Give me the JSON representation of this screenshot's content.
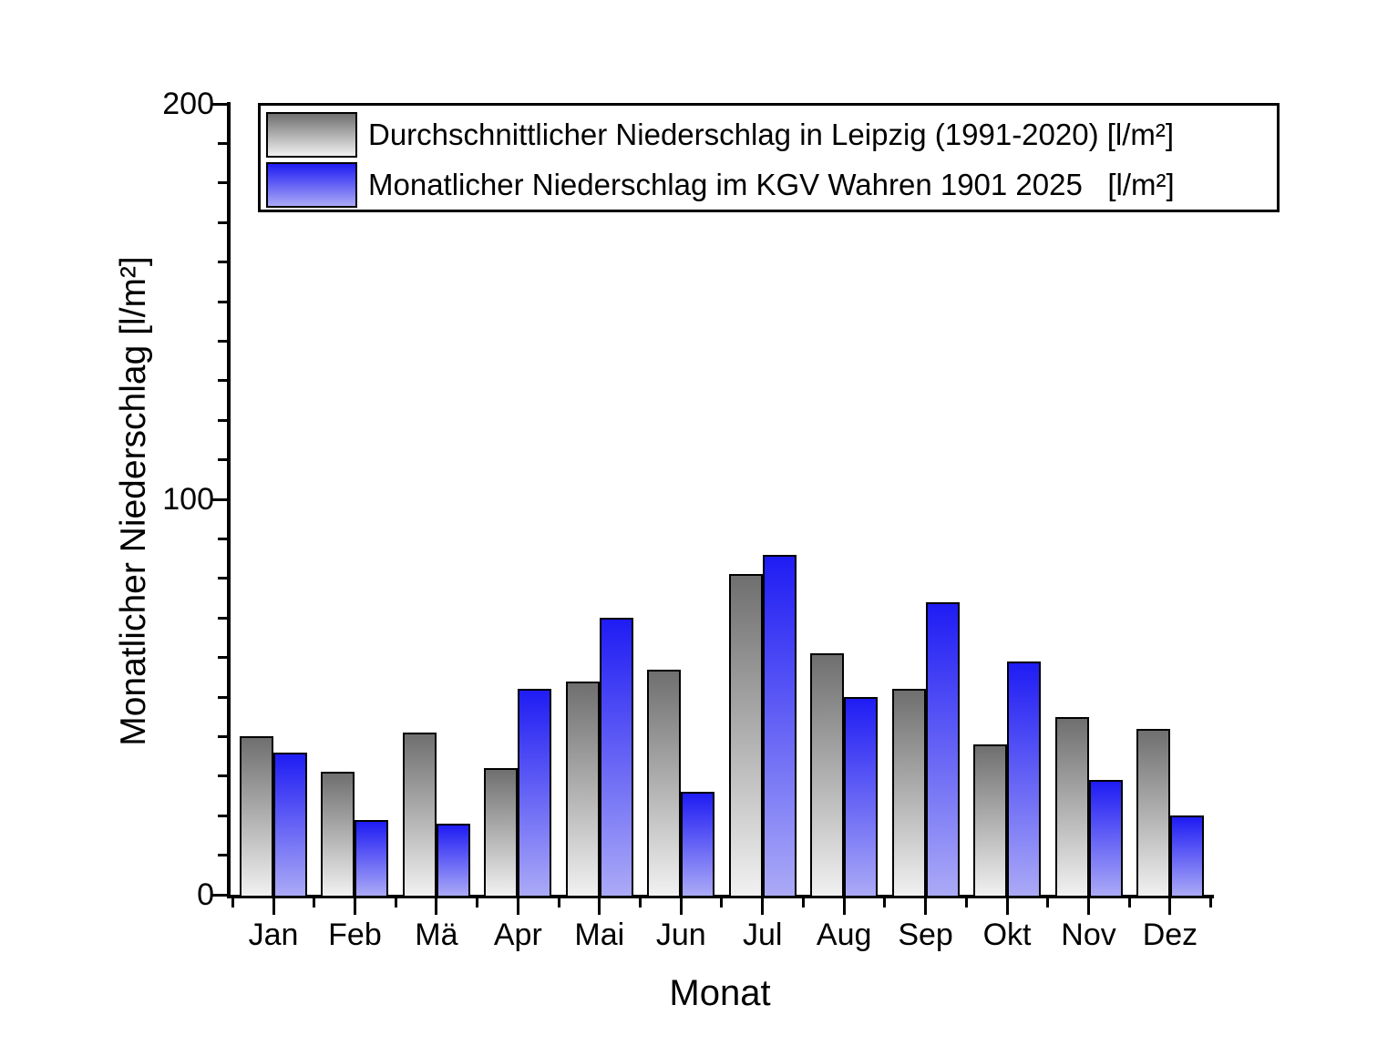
{
  "chart_data": {
    "type": "bar",
    "title": "",
    "xlabel": "Monat",
    "ylabel": "Monatlicher Niederschlag [l/m²]",
    "ylim": [
      0,
      200
    ],
    "yticks": [
      0,
      100,
      200
    ],
    "y_minor_step": 10,
    "x_minor_ticks": "between-categories",
    "grid": false,
    "legend_position": "top-left-inside",
    "categories": [
      "Jan",
      "Feb",
      "Mä",
      "Apr",
      "Mai",
      "Jun",
      "Jul",
      "Aug",
      "Sep",
      "Okt",
      "Nov",
      "Dez"
    ],
    "series": [
      {
        "name": "Durchschnittlicher Niederschlag in Leipzig (1991-2020) [l/m²]",
        "color_top": "#6f6f6f",
        "color_bottom": "#f1f1f1",
        "values": [
          40,
          31,
          41,
          32,
          54,
          57,
          81,
          61,
          52,
          38,
          45,
          42
        ]
      },
      {
        "name": "Monatlicher Niederschlag im KGV Wahren 1901 2025   [l/m²]",
        "color_top": "#1f1cf4",
        "color_bottom": "#abaaf6",
        "values": [
          36,
          19,
          18,
          52,
          70,
          26,
          86,
          50,
          74,
          59,
          29,
          20
        ]
      }
    ],
    "axis_color": "#000000",
    "background_color": "#ffffff"
  }
}
